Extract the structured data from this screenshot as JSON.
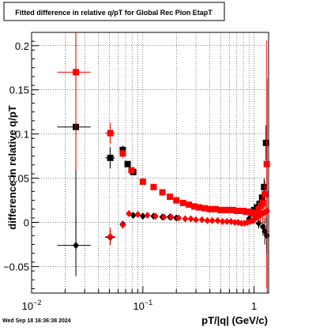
{
  "chart_data": {
    "type": "scatter",
    "title": "Fitted difference in relative q/pT for Global Rec Pion EtapT",
    "xlabel": "pT/|q| (GeV/c)",
    "ylabel": "difference in relative q/pT",
    "xscale": "log",
    "xlim": [
      0.01,
      1.35
    ],
    "ylim": [
      -0.08,
      0.215
    ],
    "x_ticks": [
      {
        "v": 0.01,
        "base": "10",
        "exp": "−2"
      },
      {
        "v": 0.1,
        "base": "10",
        "exp": "−1"
      },
      {
        "v": 1,
        "base": "1",
        "exp": ""
      }
    ],
    "y_ticks": [
      {
        "v": -0.05,
        "label": "−0.05"
      },
      {
        "v": 0,
        "label": "0"
      },
      {
        "v": 0.05,
        "label": "0.05"
      },
      {
        "v": 0.1,
        "label": "0.1"
      },
      {
        "v": 0.15,
        "label": "0.15"
      },
      {
        "v": 0.2,
        "label": "0.2"
      }
    ],
    "grid": true,
    "legend": "none",
    "series": [
      {
        "color": "#000000",
        "marker": "square",
        "points": [
          {
            "x": 0.025,
            "y": 0.108,
            "xe": [
              0.017,
              0.034
            ],
            "ye": 0.14
          },
          {
            "x": 0.051,
            "y": 0.073,
            "xe": [
              0.046,
              0.056
            ],
            "ye": 0.012
          },
          {
            "x": 0.066,
            "y": 0.082,
            "xe": [
              0.063,
              0.069
            ],
            "ye": 0.005
          },
          {
            "x": 0.073,
            "y": 0.066,
            "xe": [
              0.071,
              0.075
            ],
            "ye": 0.003
          },
          {
            "x": 0.082,
            "y": 0.057,
            "xe": [
              0.079,
              0.085
            ],
            "ye": 0.003
          },
          {
            "x": 0.95,
            "y": 0.01,
            "ye": 0.004
          },
          {
            "x": 1.0,
            "y": 0.014,
            "ye": 0.004
          },
          {
            "x": 1.06,
            "y": 0.017,
            "ye": 0.005
          },
          {
            "x": 1.12,
            "y": 0.021,
            "ye": 0.006
          },
          {
            "x": 1.18,
            "y": 0.028,
            "ye": 0.007
          },
          {
            "x": 1.23,
            "y": 0.04,
            "ye": 0.01
          },
          {
            "x": 1.28,
            "y": 0.09,
            "ye": 0.02
          }
        ]
      },
      {
        "color": "#ff0000",
        "marker": "square",
        "points": [
          {
            "x": 0.025,
            "y": 0.17,
            "xe": [
              0.017,
              0.034
            ],
            "ye": 0.11
          },
          {
            "x": 0.051,
            "y": 0.101,
            "xe": [
              0.046,
              0.056
            ],
            "ye": 0.012
          },
          {
            "x": 0.066,
            "y": 0.078,
            "xe": [
              0.063,
              0.069
            ],
            "ye": 0.005
          },
          {
            "x": 0.079,
            "y": 0.059,
            "xe": [
              0.075,
              0.083
            ],
            "ye": 0.003
          },
          {
            "x": 0.1,
            "y": 0.046,
            "ye": 0.002
          },
          {
            "x": 0.125,
            "y": 0.04,
            "ye": 0.002
          },
          {
            "x": 0.15,
            "y": 0.034,
            "ye": 0.002
          },
          {
            "x": 0.175,
            "y": 0.029,
            "ye": 0.002
          },
          {
            "x": 0.2,
            "y": 0.025,
            "ye": 0.002
          },
          {
            "x": 0.23,
            "y": 0.022,
            "ye": 0.002
          },
          {
            "x": 0.26,
            "y": 0.02,
            "ye": 0.002
          },
          {
            "x": 0.29,
            "y": 0.018,
            "ye": 0.002
          },
          {
            "x": 0.32,
            "y": 0.017,
            "ye": 0.002
          },
          {
            "x": 0.36,
            "y": 0.016,
            "ye": 0.002
          },
          {
            "x": 0.4,
            "y": 0.015,
            "ye": 0.002
          },
          {
            "x": 0.45,
            "y": 0.015,
            "ye": 0.002
          },
          {
            "x": 0.5,
            "y": 0.014,
            "ye": 0.002
          },
          {
            "x": 0.55,
            "y": 0.014,
            "ye": 0.002
          },
          {
            "x": 0.6,
            "y": 0.014,
            "ye": 0.002
          },
          {
            "x": 0.65,
            "y": 0.014,
            "ye": 0.002
          },
          {
            "x": 0.7,
            "y": 0.013,
            "ye": 0.002
          },
          {
            "x": 0.75,
            "y": 0.013,
            "ye": 0.002
          },
          {
            "x": 0.8,
            "y": 0.013,
            "ye": 0.002
          },
          {
            "x": 0.85,
            "y": 0.012,
            "ye": 0.003
          },
          {
            "x": 0.9,
            "y": 0.012,
            "ye": 0.003
          },
          {
            "x": 0.95,
            "y": 0.011,
            "ye": 0.003
          },
          {
            "x": 1.0,
            "y": 0.01,
            "ye": 0.004
          },
          {
            "x": 1.05,
            "y": 0.011,
            "ye": 0.005
          },
          {
            "x": 1.1,
            "y": 0.015,
            "ye": 0.006
          },
          {
            "x": 1.15,
            "y": 0.019,
            "ye": 0.008
          },
          {
            "x": 1.2,
            "y": 0.022,
            "ye": 0.01
          },
          {
            "x": 1.25,
            "y": 0.032,
            "ye": 0.015
          },
          {
            "x": 1.3,
            "y": 0.066,
            "ye": 0.14
          }
        ]
      },
      {
        "color": "#000000",
        "marker": "diamond",
        "points": [
          {
            "x": 0.025,
            "y": -0.026,
            "xe": [
              0.017,
              0.034
            ],
            "ye": 0.035
          },
          {
            "x": 0.051,
            "y": -0.017,
            "xe": [
              0.046,
              0.056
            ],
            "ye": 0.008
          },
          {
            "x": 0.066,
            "y": -0.002,
            "xe": [
              0.063,
              0.069
            ],
            "ye": 0.003
          },
          {
            "x": 0.082,
            "y": 0.008,
            "ye": 0.002
          },
          {
            "x": 0.1,
            "y": 0.007,
            "ye": 0.002
          },
          {
            "x": 0.125,
            "y": 0.007,
            "ye": 0.002
          },
          {
            "x": 0.15,
            "y": 0.006,
            "ye": 0.002
          },
          {
            "x": 0.175,
            "y": 0.006,
            "ye": 0.002
          },
          {
            "x": 0.2,
            "y": 0.005,
            "ye": 0.002
          },
          {
            "x": 0.9,
            "y": 0.004,
            "ye": 0.003
          },
          {
            "x": 1.0,
            "y": 0.003,
            "ye": 0.004
          },
          {
            "x": 1.1,
            "y": -0.001,
            "ye": 0.006
          },
          {
            "x": 1.2,
            "y": -0.005,
            "ye": 0.01
          },
          {
            "x": 1.25,
            "y": -0.01,
            "ye": 0.015
          },
          {
            "x": 1.3,
            "y": -0.015,
            "ye": 0.02
          }
        ]
      },
      {
        "color": "#ff0000",
        "marker": "diamond",
        "points": [
          {
            "x": 0.051,
            "y": -0.016,
            "xe": [
              0.046,
              0.056
            ],
            "ye": 0.01
          },
          {
            "x": 0.066,
            "y": -0.003,
            "xe": [
              0.063,
              0.069
            ],
            "ye": 0.003
          },
          {
            "x": 0.075,
            "y": 0.01,
            "ye": 0.002
          },
          {
            "x": 0.09,
            "y": 0.009,
            "ye": 0.002
          },
          {
            "x": 0.11,
            "y": 0.008,
            "ye": 0.002
          },
          {
            "x": 0.13,
            "y": 0.007,
            "ye": 0.002
          },
          {
            "x": 0.155,
            "y": 0.006,
            "ye": 0.002
          },
          {
            "x": 0.18,
            "y": 0.006,
            "ye": 0.002
          },
          {
            "x": 0.21,
            "y": 0.005,
            "ye": 0.002
          },
          {
            "x": 0.24,
            "y": 0.004,
            "ye": 0.002
          },
          {
            "x": 0.27,
            "y": 0.004,
            "ye": 0.002
          },
          {
            "x": 0.3,
            "y": 0.003,
            "ye": 0.002
          },
          {
            "x": 0.34,
            "y": 0.003,
            "ye": 0.002
          },
          {
            "x": 0.38,
            "y": 0.002,
            "ye": 0.002
          },
          {
            "x": 0.42,
            "y": 0.002,
            "ye": 0.002
          },
          {
            "x": 0.47,
            "y": 0.002,
            "ye": 0.002
          },
          {
            "x": 0.52,
            "y": 0.001,
            "ye": 0.002
          },
          {
            "x": 0.57,
            "y": 0.001,
            "ye": 0.002
          },
          {
            "x": 0.62,
            "y": 0.001,
            "ye": 0.002
          },
          {
            "x": 0.67,
            "y": 0.0,
            "ye": 0.002
          },
          {
            "x": 0.72,
            "y": 0.0,
            "ye": 0.002
          },
          {
            "x": 0.77,
            "y": -0.001,
            "ye": 0.002
          },
          {
            "x": 0.82,
            "y": -0.001,
            "ye": 0.003
          },
          {
            "x": 0.87,
            "y": 0.0,
            "ye": 0.003
          },
          {
            "x": 0.92,
            "y": 0.001,
            "ye": 0.003
          },
          {
            "x": 0.97,
            "y": 0.002,
            "ye": 0.004
          },
          {
            "x": 1.02,
            "y": 0.004,
            "ye": 0.005
          },
          {
            "x": 1.08,
            "y": 0.006,
            "ye": 0.006
          },
          {
            "x": 1.14,
            "y": 0.008,
            "ye": 0.008
          },
          {
            "x": 1.2,
            "y": 0.01,
            "ye": 0.01
          },
          {
            "x": 1.26,
            "y": 0.012,
            "ye": 0.012
          },
          {
            "x": 1.31,
            "y": 0.013,
            "ye": 0.15
          }
        ]
      }
    ]
  },
  "footer": {
    "timestamp": "Wed Sep 18 16:36:38 2024"
  }
}
